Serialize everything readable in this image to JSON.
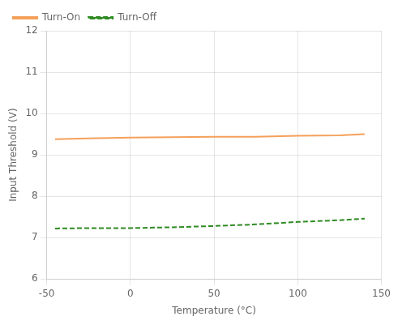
{
  "chart_data": {
    "type": "line",
    "xlabel": "Temperature (°C)",
    "ylabel": "Input Threshold (V)",
    "x": [
      -45,
      -25,
      0,
      25,
      50,
      75,
      100,
      125,
      140
    ],
    "series": [
      {
        "name": "Turn-On",
        "color": "#F5A05A",
        "line_style": "solid",
        "values": [
          9.38,
          9.4,
          9.42,
          9.43,
          9.44,
          9.44,
          9.46,
          9.47,
          9.5
        ]
      },
      {
        "name": "Turn-Off",
        "color": "#2E8B22",
        "line_style": "dashed",
        "values": [
          7.22,
          7.23,
          7.23,
          7.25,
          7.28,
          7.32,
          7.38,
          7.42,
          7.46
        ]
      }
    ],
    "xlim": [
      -50,
      150
    ],
    "ylim": [
      6,
      12
    ],
    "xticks": [
      -50,
      0,
      50,
      100,
      150
    ],
    "yticks": [
      6,
      7,
      8,
      9,
      10,
      11,
      12
    ],
    "grid": true,
    "legend": "upper left"
  }
}
